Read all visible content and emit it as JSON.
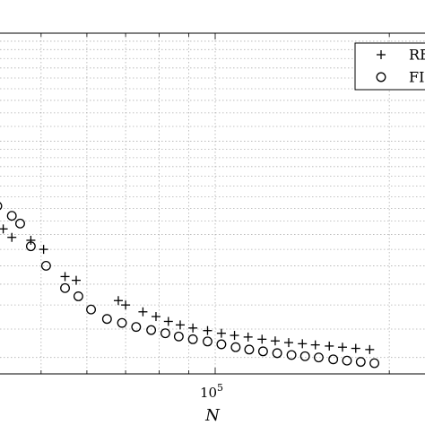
{
  "chart_data": {
    "type": "scatter",
    "xlabel": "N",
    "ylabel": "",
    "x_scale": "log",
    "y_scale": "log",
    "grid": true,
    "legend_position": "top-right",
    "ticks": {
      "x": [
        {
          "value": 100000,
          "base": "10",
          "exponent": "5"
        }
      ]
    },
    "colors": {
      "markers": "#000000",
      "grid": "#b0b0b0"
    },
    "series": [
      {
        "name": "RE",
        "marker": "plus",
        "points": [
          [
            26000,
            0.06
          ],
          [
            28000,
            0.063
          ],
          [
            30000,
            0.068
          ],
          [
            31500,
            0.063
          ],
          [
            33000,
            0.054
          ],
          [
            35000,
            0.055
          ],
          [
            37000,
            0.06
          ],
          [
            38500,
            0.07
          ],
          [
            40000,
            0.07
          ],
          [
            41500,
            0.067
          ],
          [
            43000,
            0.057
          ],
          [
            44500,
            0.054
          ],
          [
            48000,
            0.053
          ],
          [
            50500,
            0.05
          ],
          [
            55000,
            0.042
          ],
          [
            57500,
            0.041
          ],
          [
            68000,
            0.036
          ],
          [
            70000,
            0.035
          ],
          [
            75000,
            0.0335
          ],
          [
            79000,
            0.0325
          ],
          [
            83000,
            0.0315
          ],
          [
            87000,
            0.0308
          ],
          [
            91500,
            0.0302
          ],
          [
            97000,
            0.0297
          ],
          [
            102500,
            0.0292
          ],
          [
            108000,
            0.0288
          ],
          [
            114000,
            0.0285
          ],
          [
            120500,
            0.0281
          ],
          [
            127000,
            0.0278
          ],
          [
            134000,
            0.0275
          ],
          [
            141500,
            0.0273
          ],
          [
            149000,
            0.0271
          ],
          [
            157500,
            0.0269
          ],
          [
            166000,
            0.0267
          ],
          [
            175000,
            0.0265
          ],
          [
            185000,
            0.0263
          ]
        ]
      },
      {
        "name": "FI",
        "marker": "circle",
        "points": [
          [
            28000,
            0.14
          ],
          [
            29500,
            0.105
          ],
          [
            31500,
            0.098
          ],
          [
            33000,
            0.105
          ],
          [
            35000,
            0.088
          ],
          [
            37000,
            0.089
          ],
          [
            40000,
            0.079
          ],
          [
            42000,
            0.066
          ],
          [
            44500,
            0.062
          ],
          [
            46000,
            0.059
          ],
          [
            48000,
            0.051
          ],
          [
            51000,
            0.045
          ],
          [
            55000,
            0.039
          ],
          [
            58000,
            0.037
          ],
          [
            61000,
            0.034
          ],
          [
            65000,
            0.032
          ],
          [
            69000,
            0.0312
          ],
          [
            73000,
            0.0304
          ],
          [
            77500,
            0.0298
          ],
          [
            82000,
            0.0292
          ],
          [
            86500,
            0.0286
          ],
          [
            91500,
            0.0281
          ],
          [
            97000,
            0.0277
          ],
          [
            102500,
            0.0272
          ],
          [
            108500,
            0.0267
          ],
          [
            114500,
            0.0263
          ],
          [
            121000,
            0.026
          ],
          [
            128000,
            0.0257
          ],
          [
            135500,
            0.0254
          ],
          [
            143000,
            0.0252
          ],
          [
            151000,
            0.025
          ],
          [
            160000,
            0.0247
          ],
          [
            169000,
            0.0245
          ],
          [
            178500,
            0.0243
          ],
          [
            188500,
            0.0241
          ]
        ]
      }
    ]
  }
}
